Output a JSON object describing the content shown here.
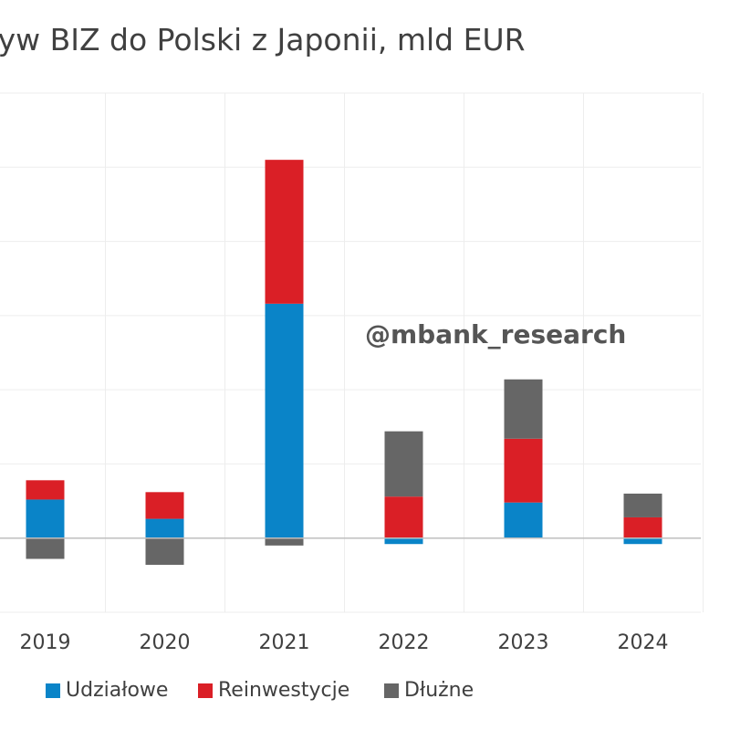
{
  "title": "ryw BIZ do Polski z Japonii, mld EUR",
  "watermark": "@mbank_research",
  "colors": {
    "udzialowe": "#0A84C8",
    "reinwestycje": "#DA1F26",
    "dluzne": "#666666",
    "grid": "#EDEDED",
    "zero_line": "#BFBFBF",
    "text": "#404040"
  },
  "chart_data": {
    "type": "bar",
    "stacked": true,
    "title": "ryw BIZ do Polski z Japonii, mld EUR",
    "categories": [
      "2019",
      "2020",
      "2021",
      "2022",
      "2023",
      "2024"
    ],
    "series": [
      {
        "name": "Udziałowe",
        "color": "#0A84C8",
        "values": [
          0.26,
          0.13,
          1.58,
          -0.04,
          0.24,
          -0.04
        ]
      },
      {
        "name": "Reinwestycje",
        "color": "#DA1F26",
        "values": [
          0.13,
          0.18,
          0.97,
          0.28,
          0.43,
          0.14
        ]
      },
      {
        "name": "Dłużne",
        "color": "#666666",
        "values": [
          -0.14,
          -0.18,
          -0.05,
          0.44,
          0.4,
          0.16
        ]
      }
    ],
    "ylim": [
      -0.5,
      3.0
    ],
    "grid": true,
    "legend_position": "bottom"
  }
}
